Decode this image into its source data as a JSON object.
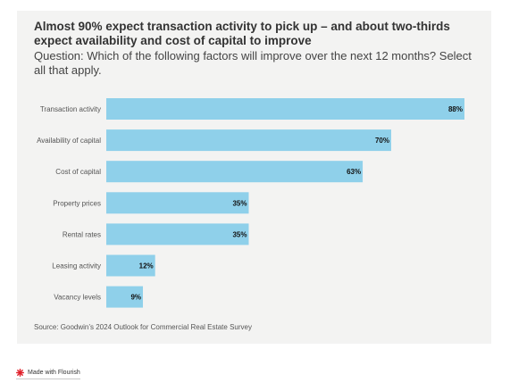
{
  "title": "Almost 90% expect transaction activity to pick up – and about two-thirds expect availability and cost of capital to improve",
  "subtitle": "Question: Which of the following factors will improve over the next 12 months? Select all that apply.",
  "source": "Source: Goodwin’s 2024 Outlook for Commercial Real Estate Survey",
  "footer": {
    "label": "Made with Flourish",
    "icon": "flourish-logo-icon",
    "icon_color": "#e0202a"
  },
  "colors": {
    "bar": "#8fd0ea",
    "background": "#f3f3f2"
  },
  "chart_data": {
    "type": "bar",
    "orientation": "horizontal",
    "categories": [
      "Transaction activity",
      "Availability of capital",
      "Cost of capital",
      "Property prices",
      "Rental rates",
      "Leasing activity",
      "Vacancy levels"
    ],
    "values": [
      88,
      70,
      63,
      35,
      35,
      12,
      9
    ],
    "value_labels": [
      "88%",
      "70%",
      "63%",
      "35%",
      "35%",
      "12%",
      "9%"
    ],
    "xlim": [
      0,
      88
    ],
    "grid": false,
    "legend": "none"
  }
}
